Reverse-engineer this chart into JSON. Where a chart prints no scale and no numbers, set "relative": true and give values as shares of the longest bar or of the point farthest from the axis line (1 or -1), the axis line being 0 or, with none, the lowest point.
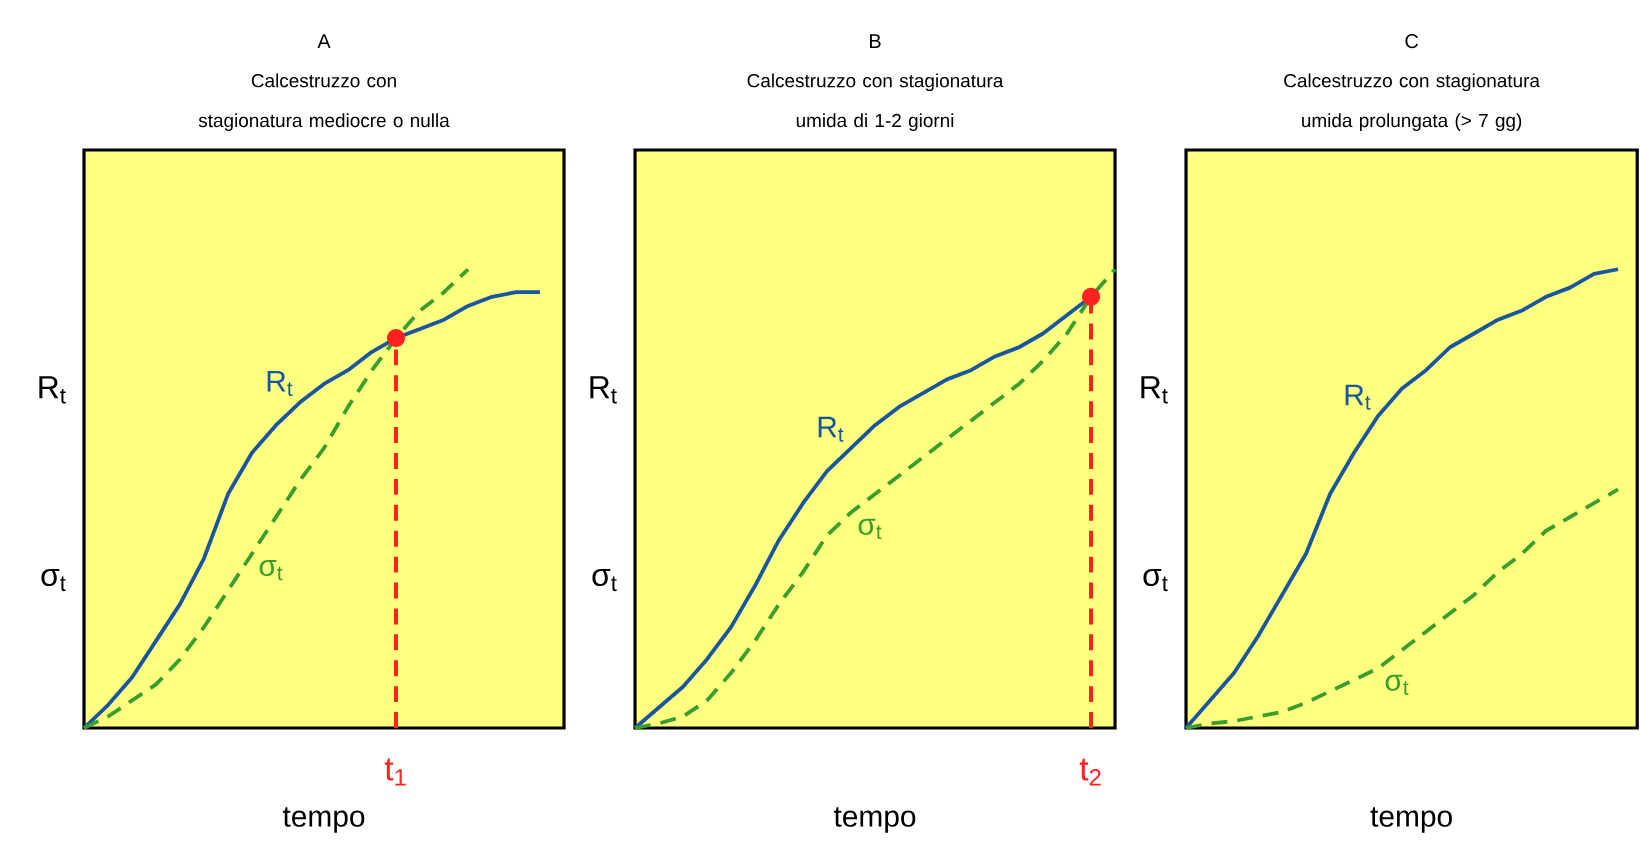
{
  "chart_data": [
    {
      "type": "line",
      "relative": true,
      "title": "A",
      "subtitle": "Calcestruzzo con stagionatura mediocre o nulla",
      "xlabel": "tempo",
      "categories": [
        null,
        null,
        null,
        null,
        null,
        null,
        null,
        null,
        null,
        null,
        null,
        null,
        null,
        null,
        null,
        null,
        null,
        null,
        null,
        null,
        null
      ],
      "annotations": [
        "R$_{t}$",
        "σ$_{t}$",
        "t$_{1}$"
      ],
      "series": [
        {
          "name": "R$_{t}$",
          "color": "#1a56a0",
          "values": [
            0,
            0.05,
            0.11,
            0.19,
            0.27,
            0.37,
            0.51,
            0.6,
            0.66,
            0.71,
            0.75,
            0.78,
            0.82,
            0.85,
            0.87,
            0.89,
            0.92,
            0.94,
            0.95,
            0.95,
            null
          ]
        },
        {
          "name": "σ$_{t}$",
          "color": "#3a9e2e",
          "line_style": "dashed",
          "values": [
            0,
            0.025,
            0.06,
            0.095,
            0.15,
            0.22,
            0.3,
            0.38,
            0.46,
            0.54,
            0.61,
            0.7,
            0.78,
            0.85,
            0.91,
            0.95,
            1,
            null,
            null,
            null,
            null
          ]
        }
      ]
    },
    {
      "type": "line",
      "relative": true,
      "title": "B",
      "subtitle": "Calcestruzzo con stagionatura umida di 1-2 giorni",
      "xlabel": "tempo",
      "categories": [
        null,
        null,
        null,
        null,
        null,
        null,
        null,
        null,
        null,
        null,
        null,
        null,
        null,
        null,
        null,
        null,
        null,
        null,
        null,
        null,
        null
      ],
      "annotations": [
        "R$_{t}$",
        "σ$_{t}$",
        "t$_{2}$"
      ],
      "series": [
        {
          "name": "R$_{t}$",
          "color": "#1a56a0",
          "values": [
            0,
            0.045,
            0.09,
            0.15,
            0.22,
            0.31,
            0.41,
            0.49,
            0.56,
            0.61,
            0.66,
            0.7,
            0.73,
            0.76,
            0.78,
            0.81,
            0.83,
            0.86,
            0.9,
            0.94,
            null
          ]
        },
        {
          "name": "σ$_{t}$",
          "color": "#3a9e2e",
          "line_style": "dashed",
          "values": [
            0,
            0.01,
            0.025,
            0.06,
            0.12,
            0.19,
            0.27,
            0.34,
            0.42,
            0.47,
            0.51,
            0.55,
            0.59,
            0.63,
            0.67,
            0.71,
            0.75,
            0.8,
            0.86,
            0.94,
            1
          ]
        }
      ]
    },
    {
      "type": "line",
      "relative": true,
      "title": "C",
      "subtitle": "Calcestruzzo con stagionatura umida prolungata (> 7 gg)",
      "xlabel": "tempo",
      "categories": [
        null,
        null,
        null,
        null,
        null,
        null,
        null,
        null,
        null,
        null,
        null,
        null,
        null,
        null,
        null,
        null,
        null,
        null,
        null
      ],
      "annotations": [
        "R$_{t}$",
        "σ$_{t}$"
      ],
      "series": [
        {
          "name": "R$_{t}$",
          "color": "#1a56a0",
          "values": [
            0,
            0.06,
            0.12,
            0.2,
            0.29,
            0.38,
            0.51,
            0.6,
            0.68,
            0.74,
            0.78,
            0.83,
            0.86,
            0.89,
            0.91,
            0.94,
            0.96,
            0.99,
            1
          ]
        },
        {
          "name": "σ$_{t}$",
          "color": "#3a9e2e",
          "line_style": "dashed",
          "values": [
            0,
            0.01,
            0.015,
            0.025,
            0.035,
            0.055,
            0.08,
            0.105,
            0.13,
            0.17,
            0.21,
            0.25,
            0.29,
            0.34,
            0.38,
            0.43,
            0.46,
            0.49,
            0.52
          ]
        }
      ]
    }
  ]
}
